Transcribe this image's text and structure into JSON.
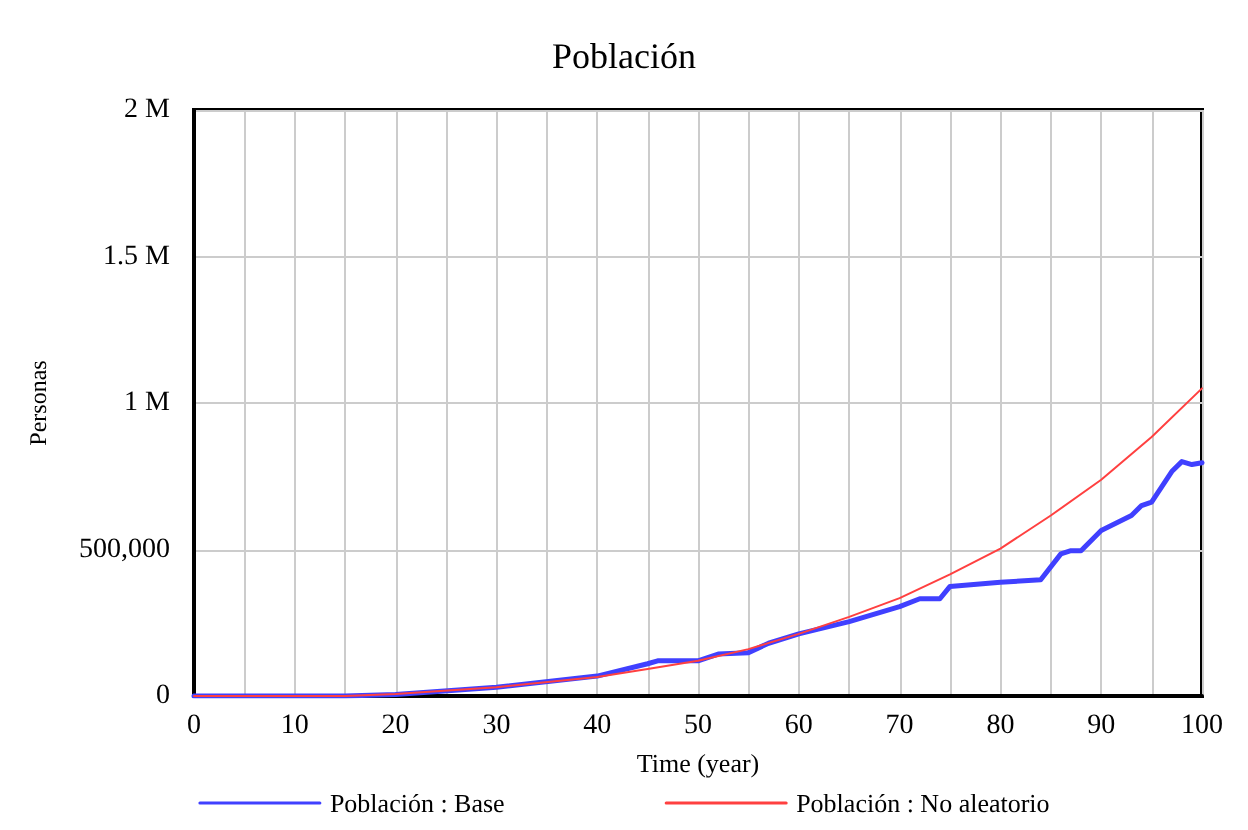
{
  "chart_data": {
    "type": "line",
    "title": "Población",
    "xlabel": "Time (year)",
    "ylabel": "Personas",
    "xlim": [
      0,
      100
    ],
    "ylim": [
      0,
      2000000
    ],
    "xticks": [
      0,
      {
        "value": 5,
        "label": null
      },
      10,
      {
        "value": 15,
        "label": null
      },
      20,
      {
        "value": 25,
        "label": null
      },
      30,
      {
        "value": 35,
        "label": null
      },
      40,
      {
        "value": 45,
        "label": null
      },
      50,
      {
        "value": 55,
        "label": null
      },
      60,
      {
        "value": 65,
        "label": null
      },
      70,
      {
        "value": 75,
        "label": null
      },
      80,
      {
        "value": 85,
        "label": null
      },
      90,
      {
        "value": 95,
        "label": null
      },
      100
    ],
    "yticks": [
      0,
      {
        "value": 500000,
        "label": "500,000"
      },
      {
        "value": 1000000,
        "label": "1 M"
      },
      {
        "value": 1500000,
        "label": "1.5 M"
      },
      {
        "value": 2000000,
        "label": "2 M"
      }
    ],
    "grid": true,
    "legend": "bottom",
    "marker": "none",
    "line_style": "solid",
    "series": [
      {
        "name": "Población : Base",
        "color": "#4040ff",
        "x": [
          0,
          15,
          20,
          30,
          40,
          45,
          46,
          50,
          52,
          55,
          57,
          60,
          65,
          70,
          72,
          74,
          75,
          80,
          84,
          86,
          87,
          88,
          90,
          93,
          94,
          95,
          97,
          98,
          99,
          100
        ],
        "values": [
          0,
          0,
          5000,
          30000,
          68000,
          110000,
          120000,
          120000,
          143000,
          148000,
          180000,
          212000,
          254000,
          305000,
          332000,
          332000,
          374000,
          388000,
          397000,
          485000,
          496000,
          496000,
          565000,
          616000,
          650000,
          662000,
          766000,
          800000,
          790000,
          796000
        ]
      },
      {
        "name": "Población : No aleatorio",
        "color": "#ff4040",
        "x": [
          0,
          15,
          20,
          30,
          40,
          45,
          50,
          55,
          60,
          65,
          70,
          75,
          80,
          85,
          90,
          95,
          100
        ],
        "values": [
          0,
          0,
          7000,
          30000,
          65000,
          92000,
          120000,
          160000,
          212000,
          270000,
          334000,
          415000,
          503000,
          616000,
          738000,
          884000,
          1050000
        ]
      }
    ]
  }
}
